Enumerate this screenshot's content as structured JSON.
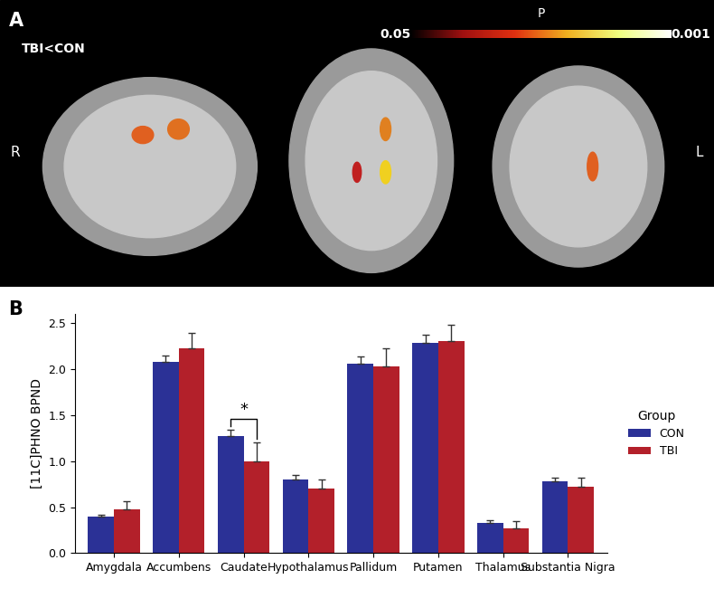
{
  "chart_data": {
    "type": "bar",
    "panel_label": "B",
    "y_label": "[11C]PHNO BPND",
    "categories": [
      "Amygdala",
      "Accumbens",
      "Caudate",
      "Hypothalamus",
      "Pallidum",
      "Putamen",
      "Thalamus",
      "Substantia Nigra"
    ],
    "series": [
      {
        "name": "CON",
        "color": "#2b3196",
        "values": [
          0.4,
          2.08,
          1.27,
          0.8,
          2.06,
          2.29,
          0.33,
          0.78
        ],
        "errors": [
          0.02,
          0.07,
          0.07,
          0.05,
          0.08,
          0.08,
          0.03,
          0.04
        ]
      },
      {
        "name": "TBI",
        "color": "#b3202a",
        "values": [
          0.48,
          2.23,
          1.0,
          0.7,
          2.03,
          2.31,
          0.27,
          0.72
        ],
        "errors": [
          0.08,
          0.16,
          0.2,
          0.1,
          0.2,
          0.17,
          0.08,
          0.1
        ]
      }
    ],
    "ylim": [
      0,
      2.6
    ],
    "yticks": [
      0.0,
      0.5,
      1.0,
      1.5,
      2.0,
      2.5
    ],
    "legend": "right",
    "legend_title": "Group",
    "grid": false,
    "annotations": [
      {
        "text": "*",
        "category": "Caudate",
        "between": [
          "CON",
          "TBI"
        ]
      }
    ]
  },
  "panel_a": {
    "panel_label": "A",
    "title": "TBI<CON",
    "colorbar": {
      "label": "P",
      "range": [
        0.05,
        0.001
      ],
      "ticks": [
        0.05,
        0.001
      ]
    },
    "left_label": "R",
    "right_label": "L"
  }
}
